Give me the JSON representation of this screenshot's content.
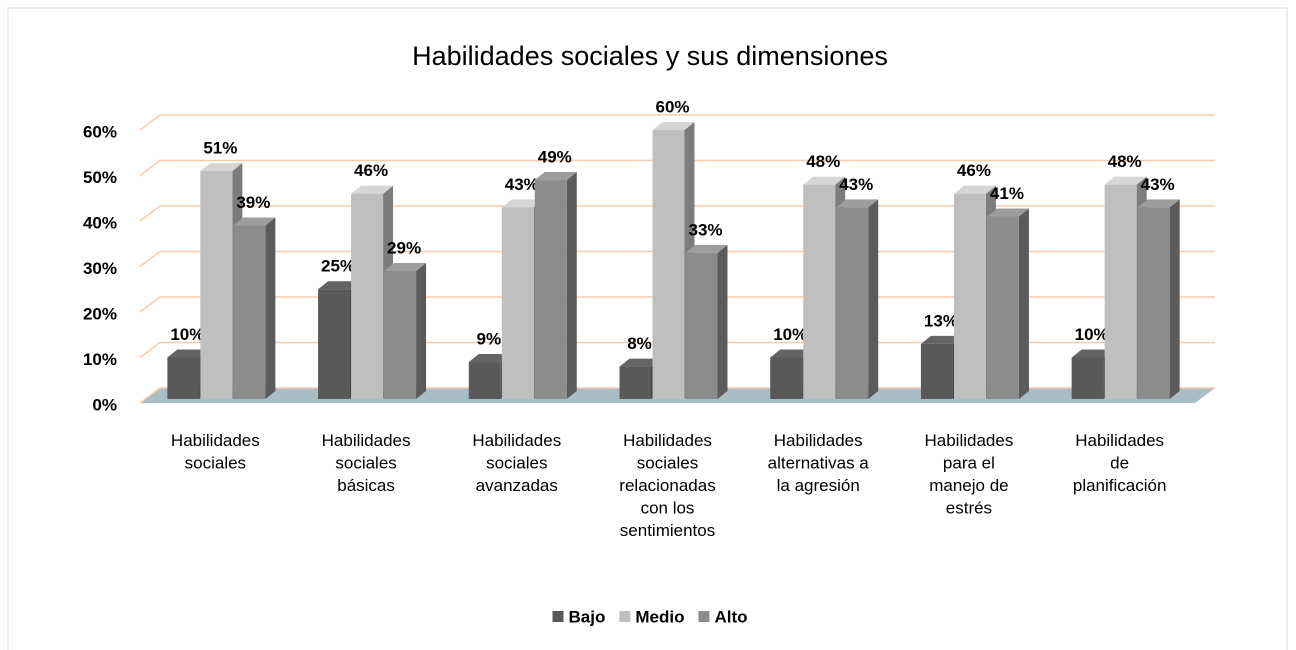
{
  "chart_data": {
    "type": "bar3d",
    "title": "Habilidades sociales  y sus dimensiones",
    "categories": [
      "Habilidades sociales",
      "Habilidades sociales básicas",
      "Habilidades sociales avanzadas",
      "Habilidades sociales relacionadas con los sentimientos",
      "Habilidades alternativas a la agresión",
      "Habilidades para el manejo de estrés",
      "Habilidades de planificación"
    ],
    "series": [
      {
        "name": "Bajo",
        "color": "#595959",
        "values": [
          10,
          25,
          9,
          8,
          10,
          13,
          10
        ],
        "value_labels": [
          "10%",
          "25%",
          "9%",
          "8%",
          "10%",
          "13%",
          "10%"
        ]
      },
      {
        "name": "Medio",
        "color": "#bfbfbf",
        "values": [
          51,
          46,
          43,
          60,
          48,
          46,
          48
        ],
        "value_labels": [
          "51%",
          "46%",
          "43%",
          "60%",
          "48%",
          "46%",
          "48%"
        ]
      },
      {
        "name": "Alto",
        "color": "#8c8c8c",
        "values": [
          39,
          29,
          49,
          33,
          43,
          41,
          43
        ],
        "value_labels": [
          "39%",
          "29%",
          "49%",
          "33%",
          "43%",
          "41%",
          "43%"
        ]
      }
    ],
    "ylim": [
      0,
      60
    ],
    "yticks": [
      {
        "value": 0,
        "label": "0%"
      },
      {
        "value": 10,
        "label": "10%"
      },
      {
        "value": 20,
        "label": "20%"
      },
      {
        "value": 30,
        "label": "30%"
      },
      {
        "value": 40,
        "label": "40%"
      },
      {
        "value": 50,
        "label": "50%"
      },
      {
        "value": 60,
        "label": "60%"
      }
    ],
    "grid": true,
    "legend": "bottom"
  }
}
